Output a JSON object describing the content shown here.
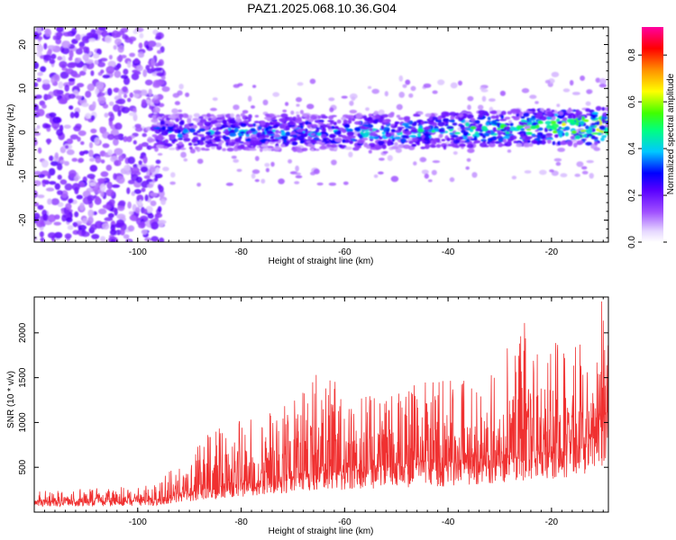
{
  "chart_data": [
    {
      "type": "heatmap",
      "title": "PAZ1.2025.068.10.36.G04",
      "xlabel": "Height of straight line (km)",
      "ylabel": "Frequency (Hz)",
      "xlim": [
        -120,
        -9
      ],
      "ylim": [
        -25,
        24
      ],
      "x_ticks": [
        -100,
        -80,
        -60,
        -40,
        -20
      ],
      "x_tick_labels": [
        "-100",
        "-80",
        "-60",
        "-40",
        "-20"
      ],
      "y_ticks": [
        -20,
        -10,
        0,
        10,
        20
      ],
      "y_tick_labels": [
        "-20",
        "-10",
        "0",
        "10",
        "20"
      ],
      "colorbar": {
        "label": "Normalized spectral amplitude",
        "range": [
          0,
          0.92
        ],
        "ticks": [
          0.0,
          0.2,
          0.4,
          0.6,
          0.8
        ],
        "tick_labels": [
          "0.0",
          "0.2",
          "0.4",
          "0.6",
          "0.8"
        ],
        "colormap": "rainbow (white-lavender-purple-blue-cyan-green-yellow-orange-red-magenta)"
      },
      "features": {
        "diffuse_noise_region_km": [
          -120,
          -97
        ],
        "noise_amplitude": 0.2,
        "signal_band": {
          "start_km": -97,
          "end_km": -9,
          "center_frequency_hz": [
            {
              "x": -97,
              "f": 0
            },
            {
              "x": -60,
              "f": 0
            },
            {
              "x": -9,
              "f": 1.5
            }
          ],
          "half_width_hz": 4,
          "amplitude": [
            {
              "x": -97,
              "a": 0.35
            },
            {
              "x": -60,
              "a": 0.4
            },
            {
              "x": -30,
              "a": 0.5
            },
            {
              "x": -9,
              "a": 0.7
            }
          ]
        }
      }
    },
    {
      "type": "line",
      "xlabel": "Height of straight line (km)",
      "ylabel": "SNR (10 * v/v)",
      "xlim": [
        -120,
        -9
      ],
      "ylim": [
        0,
        2400
      ],
      "x_ticks": [
        -100,
        -80,
        -60,
        -40,
        -20
      ],
      "x_tick_labels": [
        "-100",
        "-80",
        "-60",
        "-40",
        "-20"
      ],
      "y_ticks": [
        500,
        1000,
        1500,
        2000
      ],
      "y_tick_labels": [
        "500",
        "1000",
        "1500",
        "2000"
      ],
      "color": "#f03030",
      "envelope": [
        {
          "x": -120,
          "base": 100,
          "peak": 230
        },
        {
          "x": -97,
          "base": 110,
          "peak": 300
        },
        {
          "x": -92,
          "base": 180,
          "peak": 560
        },
        {
          "x": -84,
          "base": 250,
          "peak": 1000
        },
        {
          "x": -75,
          "base": 320,
          "peak": 1100
        },
        {
          "x": -65,
          "base": 380,
          "peak": 1530
        },
        {
          "x": -55,
          "base": 420,
          "peak": 1300
        },
        {
          "x": -45,
          "base": 450,
          "peak": 1450
        },
        {
          "x": -35,
          "base": 480,
          "peak": 1500
        },
        {
          "x": -25,
          "base": 560,
          "peak": 2110
        },
        {
          "x": -15,
          "base": 650,
          "peak": 1870
        },
        {
          "x": -10,
          "base": 800,
          "peak": 2350
        },
        {
          "x": -9,
          "base": 900,
          "peak": 2000
        }
      ],
      "notable_peaks": [
        {
          "x": -65.5,
          "y": 1530
        },
        {
          "x": -25.2,
          "y": 2110
        },
        {
          "x": -10.3,
          "y": 2350
        }
      ]
    }
  ]
}
